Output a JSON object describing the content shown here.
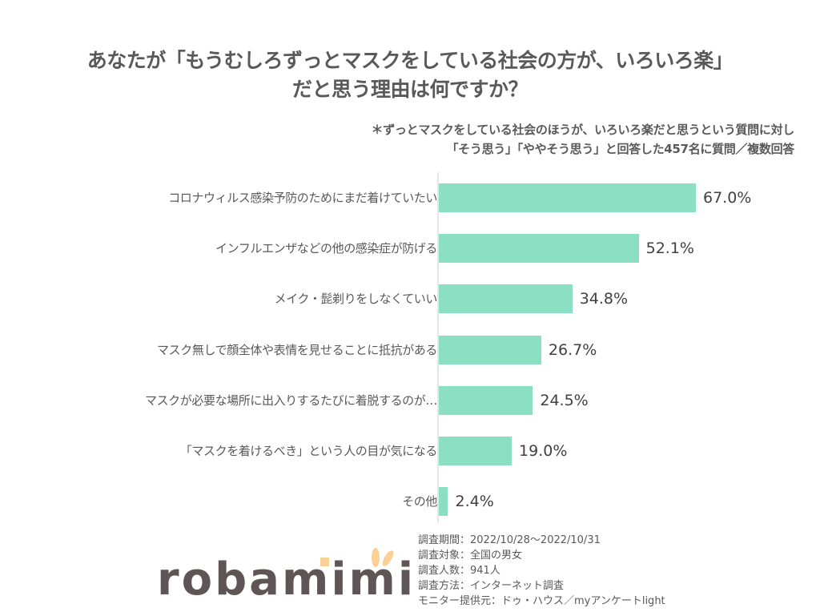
{
  "title": {
    "line1": "あなたが「もうむしろずっとマスクをしている社会の方が、いろいろ楽」",
    "line2": "だと思う理由は何ですか？"
  },
  "note": {
    "line1": "＊ずっとマスクをしている社会のほうが、いろいろ楽だと思うという質問に対し",
    "line2": "「そう思う」「ややそう思う」と回答した457名に質問／複数回答"
  },
  "colors": {
    "bar": "#8be0c4",
    "title": "#595959",
    "logo_text": "#5f5556",
    "logo_accent": "#fbd097"
  },
  "chart_data": {
    "type": "bar",
    "orientation": "horizontal",
    "title": "あなたが「もうむしろずっとマスクをしている社会の方が、いろいろ楽」だと思う理由は何ですか？",
    "subtitle": "＊ずっとマスクをしている社会のほうが、いろいろ楽だと思うという質問に対し「そう思う」「ややそう思う」と回答した457名に質問／複数回答",
    "categories": [
      "コロナウィルス感染予防のためにまだ着けていたい",
      "インフルエンザなどの他の感染症が防げる",
      "メイク・髭剃りをしなくていい",
      "マスク無しで顔全体や表情を見せることに抵抗がある",
      "マスクが必要な場所に出入りするたびに着脱するのが…",
      "「マスクを着けるべき」という人の目が気になる",
      "その他"
    ],
    "values": [
      67.0,
      52.1,
      34.8,
      26.7,
      24.5,
      19.0,
      2.4
    ],
    "value_labels": [
      "67.0%",
      "52.1%",
      "34.8%",
      "26.7%",
      "24.5%",
      "19.0%",
      "2.4%"
    ],
    "unit": "%",
    "xlabel": "",
    "ylabel": "",
    "grid": false,
    "legend": false
  },
  "logo": {
    "text": "robamimi"
  },
  "survey": {
    "period": "調査期間：2022/10/28～2022/10/31",
    "target": "調査対象：全国の男女",
    "respondents": "調査人数：941人",
    "method": "調査方法：インターネット調査",
    "provider": "モニター提供元：ドゥ・ハウス／myアンケートlight"
  }
}
